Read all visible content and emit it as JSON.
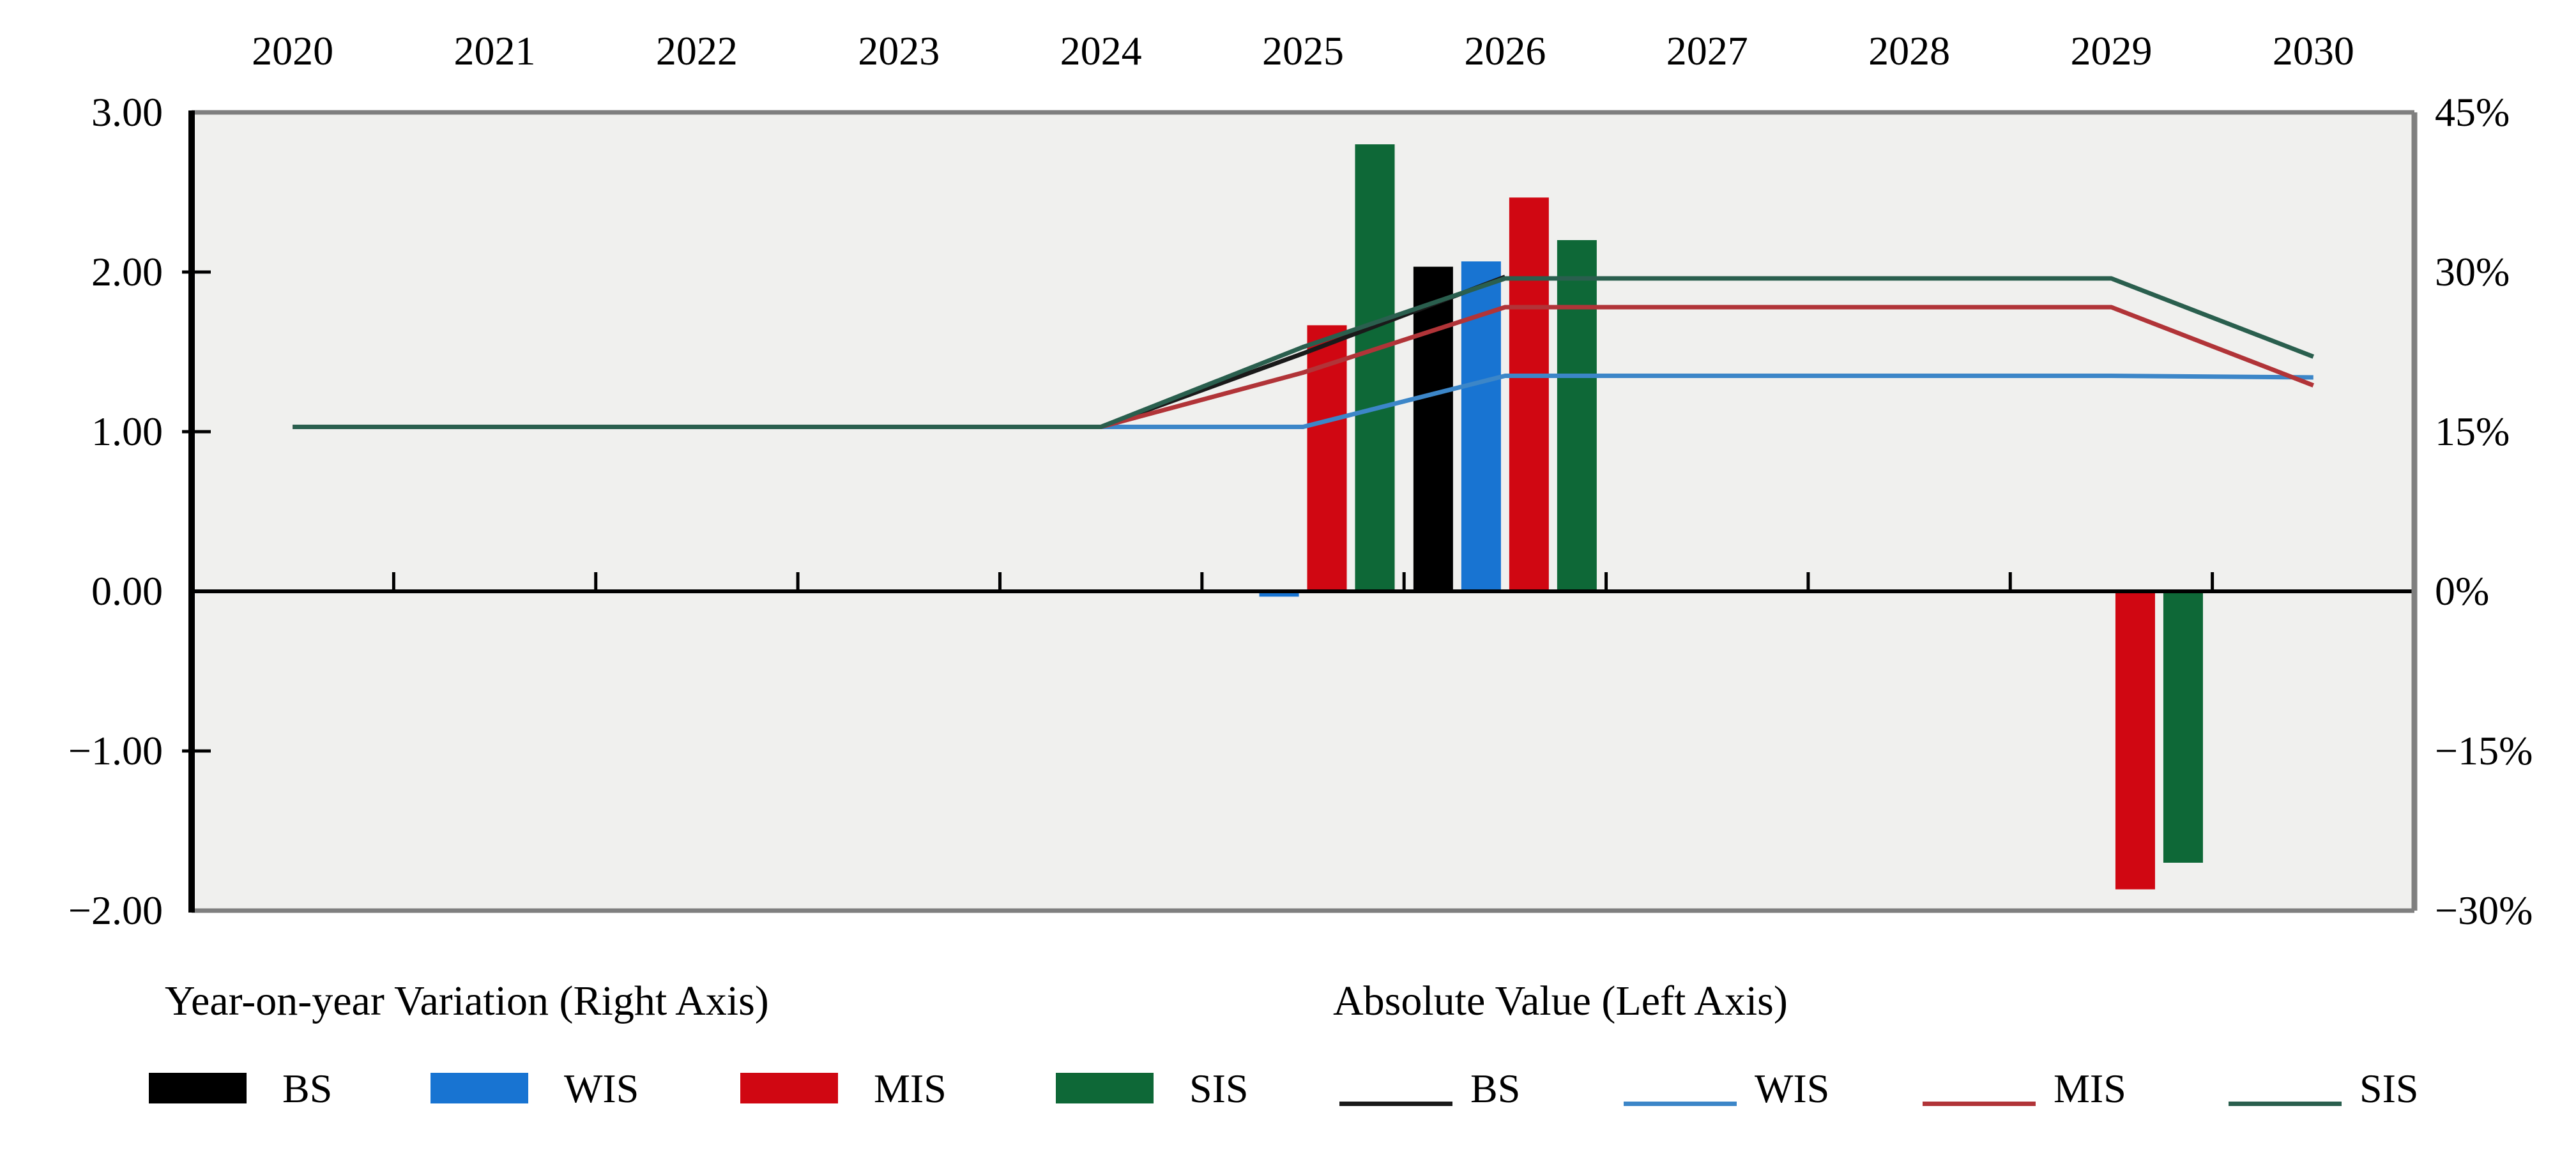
{
  "chart_data": {
    "type": "combo-bar-line",
    "x": {
      "categories": [
        "2020",
        "2021",
        "2022",
        "2023",
        "2024",
        "2025",
        "2026",
        "2027",
        "2028",
        "2029",
        "2030"
      ],
      "labels_position": "top"
    },
    "left_axis": {
      "name": "Absolute Value (Left Axis)",
      "ticks": [
        "3.00",
        "2.00",
        "1.00",
        "0.00",
        "−1.00",
        "−2.00"
      ],
      "tick_values": [
        3,
        2,
        1,
        0,
        -1,
        -2
      ],
      "range": [
        -2,
        3
      ]
    },
    "right_axis": {
      "name": "Year-on-year Variation (Right Axis)",
      "ticks": [
        "45%",
        "30%",
        "15%",
        "0%",
        "−15%",
        "−30%"
      ],
      "tick_values": [
        45,
        30,
        15,
        0,
        -15,
        -30
      ],
      "range": [
        -30,
        45
      ],
      "unit": "%"
    },
    "grid": "off",
    "legend_position": "bottom",
    "bar_series": [
      {
        "name": "BS",
        "axis": "right",
        "color": "#000000",
        "values": [
          null,
          null,
          null,
          null,
          null,
          null,
          30.5,
          null,
          null,
          null,
          null
        ]
      },
      {
        "name": "WIS",
        "axis": "right",
        "color": "#1874D2",
        "values": [
          null,
          null,
          null,
          null,
          null,
          -0.5,
          31,
          null,
          null,
          null,
          null
        ]
      },
      {
        "name": "MIS",
        "axis": "right",
        "color": "#D00712",
        "values": [
          null,
          null,
          null,
          null,
          null,
          25,
          37,
          null,
          null,
          -28,
          null
        ]
      },
      {
        "name": "SIS",
        "axis": "right",
        "color": "#0E6837",
        "values": [
          null,
          null,
          null,
          null,
          null,
          42,
          33,
          null,
          null,
          -25.5,
          null
        ]
      }
    ],
    "line_series": [
      {
        "name": "BS",
        "axis": "left",
        "color": "#1A1A1A",
        "values": [
          1.03,
          1.03,
          1.03,
          1.03,
          1.03,
          1.49,
          1.97,
          null,
          null,
          null,
          null
        ]
      },
      {
        "name": "WIS",
        "axis": "left",
        "color": "#3C86C8",
        "values": [
          1.03,
          1.03,
          1.03,
          1.03,
          1.03,
          1.03,
          1.35,
          1.35,
          1.35,
          1.35,
          1.34
        ]
      },
      {
        "name": "MIS",
        "axis": "left",
        "color": "#B13438",
        "values": [
          1.03,
          1.03,
          1.03,
          1.03,
          1.03,
          1.37,
          1.78,
          1.78,
          1.78,
          1.78,
          1.29
        ]
      },
      {
        "name": "SIS",
        "axis": "left",
        "color": "#2A5F4E",
        "values": [
          1.03,
          1.03,
          1.03,
          1.03,
          1.03,
          1.53,
          1.96,
          1.96,
          1.96,
          1.96,
          1.47
        ]
      }
    ],
    "plot_colors": {
      "background": "#F0F0EE",
      "border": "#7F7F7F",
      "axis_line": "#000000",
      "page_background": "#FFFFFF"
    }
  },
  "legend": {
    "groups": [
      {
        "title": "Year-on-year Variation (Right Axis)",
        "marker": "swatch",
        "items": [
          {
            "label": "BS",
            "color": "#000000"
          },
          {
            "label": "WIS",
            "color": "#1874D2"
          },
          {
            "label": "MIS",
            "color": "#D00712"
          },
          {
            "label": "SIS",
            "color": "#0E6837"
          }
        ]
      },
      {
        "title": "Absolute Value (Left Axis)",
        "marker": "line",
        "items": [
          {
            "label": "BS",
            "color": "#1A1A1A"
          },
          {
            "label": "WIS",
            "color": "#3C86C8"
          },
          {
            "label": "MIS",
            "color": "#B13438"
          },
          {
            "label": "SIS",
            "color": "#2A5F4E"
          }
        ]
      }
    ]
  }
}
